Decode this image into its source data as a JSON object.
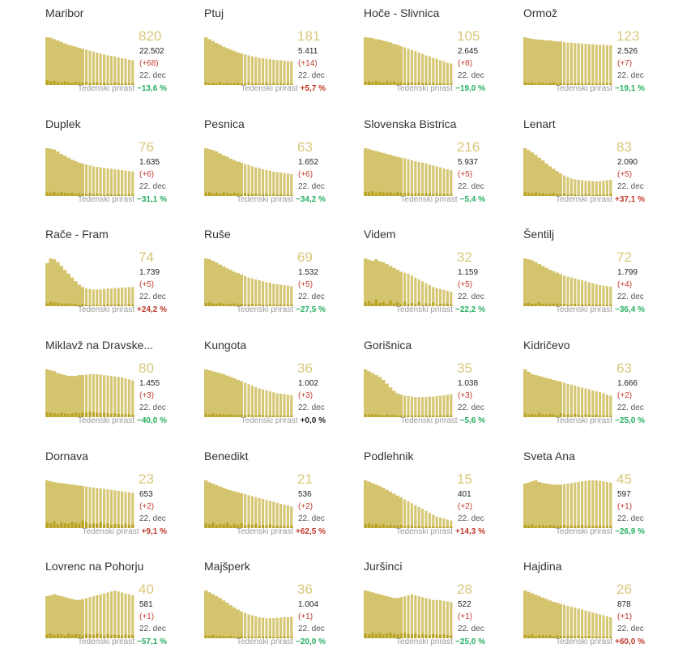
{
  "colors": {
    "active_fill": "#d4c46e",
    "line_fill": "#e9e1b0",
    "new_fill": "#b9a324",
    "active_text": "#d8c77a",
    "positive_change": "#c0392b",
    "negative_change": "#27ae60",
    "neutral_change": "#222222"
  },
  "weekly_label": "Tedenski prirast",
  "date_label": "22. dec",
  "chart_data": [
    {
      "type": "bar",
      "title": "Maribor",
      "active": "820",
      "total": "22.502",
      "new": "(+68)",
      "weekly": "−13,6 %",
      "trend": "down",
      "values": [
        100,
        99,
        96,
        93,
        90,
        87,
        84,
        82,
        80,
        78,
        76,
        74,
        72,
        70,
        68,
        66,
        64,
        62,
        61,
        60,
        58,
        56,
        55,
        53,
        52
      ],
      "daily": [
        10,
        8,
        9,
        7,
        6,
        8,
        6,
        5,
        7,
        6,
        5,
        6,
        4,
        5,
        6,
        4,
        5,
        4,
        3,
        5,
        4,
        3,
        4,
        3,
        4
      ]
    },
    {
      "type": "bar",
      "title": "Ptuj",
      "active": "181",
      "total": "5.411",
      "new": "(+14)",
      "weekly": "+5,7 %",
      "trend": "up",
      "values": [
        100,
        96,
        92,
        88,
        84,
        80,
        77,
        74,
        71,
        68,
        66,
        64,
        62,
        60,
        59,
        57,
        56,
        55,
        54,
        53,
        52,
        52,
        51,
        50,
        50
      ],
      "daily": [
        6,
        4,
        5,
        3,
        6,
        4,
        5,
        3,
        4,
        5,
        3,
        4,
        5,
        3,
        4,
        3,
        4,
        5,
        3,
        4,
        3,
        4,
        3,
        4,
        3
      ]
    },
    {
      "type": "bar",
      "title": "Hoče - Slivnica",
      "active": "105",
      "total": "2.645",
      "new": "(+8)",
      "weekly": "−19,0 %",
      "trend": "down",
      "values": [
        100,
        99,
        98,
        96,
        95,
        93,
        91,
        89,
        86,
        84,
        81,
        79,
        76,
        73,
        71,
        68,
        65,
        62,
        60,
        57,
        55,
        52,
        50,
        47,
        45
      ],
      "daily": [
        7,
        8,
        6,
        9,
        7,
        5,
        8,
        6,
        7,
        5,
        6,
        4,
        6,
        5,
        4,
        6,
        4,
        5,
        3,
        4,
        3,
        4,
        3,
        3,
        3
      ]
    },
    {
      "type": "bar",
      "title": "Ormož",
      "active": "123",
      "total": "2.526",
      "new": "(+7)",
      "weekly": "−19,1 %",
      "trend": "down",
      "values": [
        90,
        88,
        87,
        86,
        85,
        85,
        84,
        84,
        83,
        82,
        82,
        81,
        80,
        80,
        79,
        79,
        78,
        78,
        77,
        77,
        76,
        76,
        76,
        75,
        75
      ],
      "daily": [
        5,
        4,
        5,
        3,
        5,
        4,
        3,
        4,
        5,
        3,
        4,
        3,
        4,
        3,
        3,
        4,
        3,
        3,
        4,
        3,
        3,
        3,
        4,
        3,
        3
      ]
    },
    {
      "type": "bar",
      "title": "Duplek",
      "active": "76",
      "total": "1.635",
      "new": "(+6)",
      "weekly": "−31,1 %",
      "trend": "down",
      "values": [
        100,
        99,
        97,
        93,
        88,
        84,
        80,
        76,
        73,
        70,
        68,
        66,
        64,
        62,
        61,
        60,
        59,
        58,
        57,
        56,
        55,
        54,
        53,
        52,
        51
      ],
      "daily": [
        8,
        7,
        9,
        6,
        8,
        7,
        6,
        7,
        5,
        6,
        5,
        4,
        6,
        4,
        5,
        4,
        3,
        5,
        4,
        3,
        4,
        3,
        3,
        4,
        3
      ]
    },
    {
      "type": "bar",
      "title": "Pesnica",
      "active": "63",
      "total": "1.652",
      "new": "(+6)",
      "weekly": "−34,2 %",
      "trend": "down",
      "values": [
        100,
        98,
        96,
        93,
        89,
        85,
        82,
        78,
        75,
        72,
        70,
        67,
        65,
        62,
        60,
        58,
        56,
        54,
        53,
        51,
        50,
        49,
        48,
        47,
        46
      ],
      "daily": [
        7,
        8,
        6,
        7,
        5,
        8,
        6,
        5,
        7,
        6,
        4,
        6,
        5,
        4,
        5,
        3,
        4,
        5,
        3,
        4,
        3,
        4,
        3,
        3,
        3
      ]
    },
    {
      "type": "bar",
      "title": "Slovenska Bistrica",
      "active": "216",
      "total": "5.937",
      "new": "(+5)",
      "weekly": "−5,4 %",
      "trend": "down",
      "values": [
        100,
        98,
        96,
        94,
        92,
        90,
        88,
        86,
        84,
        82,
        80,
        79,
        77,
        75,
        73,
        71,
        70,
        68,
        66,
        64,
        62,
        60,
        58,
        56,
        54
      ],
      "daily": [
        9,
        8,
        10,
        7,
        9,
        8,
        7,
        8,
        6,
        8,
        7,
        6,
        7,
        6,
        5,
        6,
        5,
        6,
        5,
        4,
        5,
        4,
        5,
        4,
        4
      ]
    },
    {
      "type": "bar",
      "title": "Lenart",
      "active": "83",
      "total": "2.090",
      "new": "(+5)",
      "weekly": "+37,1 %",
      "trend": "up",
      "values": [
        100,
        96,
        91,
        86,
        80,
        74,
        68,
        62,
        57,
        52,
        47,
        43,
        40,
        37,
        35,
        34,
        33,
        32,
        32,
        31,
        31,
        31,
        32,
        33,
        34
      ],
      "daily": [
        8,
        7,
        6,
        8,
        5,
        6,
        4,
        5,
        6,
        4,
        3,
        5,
        3,
        4,
        3,
        2,
        3,
        4,
        3,
        2,
        3,
        3,
        4,
        3,
        4
      ]
    },
    {
      "type": "bar",
      "title": "Rače - Fram",
      "active": "74",
      "total": "1.739",
      "new": "(+5)",
      "weekly": "+24,2 %",
      "trend": "up",
      "values": [
        90,
        100,
        98,
        92,
        84,
        76,
        68,
        60,
        52,
        45,
        40,
        37,
        36,
        35,
        35,
        35,
        36,
        37,
        37,
        38,
        38,
        39,
        39,
        40,
        40
      ],
      "daily": [
        6,
        9,
        8,
        7,
        6,
        5,
        6,
        4,
        5,
        3,
        4,
        3,
        2,
        3,
        3,
        2,
        3,
        4,
        3,
        3,
        4,
        3,
        3,
        4,
        3
      ]
    },
    {
      "type": "bar",
      "title": "Ruše",
      "active": "69",
      "total": "1.532",
      "new": "(+5)",
      "weekly": "−27,5 %",
      "trend": "down",
      "values": [
        100,
        98,
        95,
        91,
        87,
        83,
        79,
        76,
        72,
        69,
        66,
        63,
        60,
        58,
        56,
        54,
        52,
        50,
        49,
        47,
        46,
        45,
        44,
        43,
        42
      ],
      "daily": [
        7,
        8,
        6,
        5,
        7,
        6,
        4,
        5,
        6,
        4,
        5,
        3,
        4,
        5,
        3,
        4,
        3,
        3,
        4,
        3,
        3,
        3,
        3,
        3,
        3
      ]
    },
    {
      "type": "bar",
      "title": "Videm",
      "active": "32",
      "total": "1.159",
      "new": "(+5)",
      "weekly": "−22,2 %",
      "trend": "down",
      "values": [
        100,
        97,
        95,
        98,
        94,
        92,
        88,
        84,
        80,
        76,
        72,
        70,
        68,
        64,
        60,
        56,
        52,
        48,
        44,
        40,
        38,
        36,
        34,
        32,
        30
      ],
      "daily": [
        8,
        10,
        6,
        14,
        7,
        9,
        5,
        12,
        6,
        8,
        4,
        10,
        5,
        7,
        4,
        9,
        3,
        6,
        4,
        8,
        3,
        5,
        4,
        6,
        3
      ]
    },
    {
      "type": "bar",
      "title": "Šentilj",
      "active": "72",
      "total": "1.799",
      "new": "(+4)",
      "weekly": "−36,4 %",
      "trend": "down",
      "values": [
        100,
        98,
        96,
        92,
        88,
        84,
        80,
        76,
        73,
        70,
        67,
        64,
        62,
        60,
        58,
        56,
        54,
        52,
        50,
        48,
        46,
        44,
        43,
        42,
        41
      ],
      "daily": [
        6,
        7,
        5,
        6,
        8,
        5,
        6,
        4,
        5,
        6,
        4,
        5,
        3,
        4,
        5,
        3,
        4,
        3,
        4,
        3,
        3,
        4,
        3,
        3,
        3
      ]
    },
    {
      "type": "bar",
      "title": "Miklavž na Dravske...",
      "active": "80",
      "total": "1.455",
      "new": "(+3)",
      "weekly": "−40,0 %",
      "trend": "down",
      "values": [
        100,
        98,
        96,
        92,
        90,
        88,
        86,
        86,
        86,
        88,
        88,
        89,
        90,
        90,
        90,
        89,
        88,
        87,
        86,
        85,
        84,
        83,
        81,
        79,
        77
      ],
      "daily": [
        10,
        9,
        8,
        7,
        9,
        8,
        7,
        8,
        9,
        8,
        10,
        9,
        12,
        10,
        9,
        8,
        9,
        8,
        7,
        8,
        7,
        6,
        7,
        6,
        5
      ]
    },
    {
      "type": "bar",
      "title": "Kungota",
      "active": "36",
      "total": "1.002",
      "new": "(+3)",
      "weekly": "+0,0 %",
      "trend": "flat",
      "values": [
        100,
        98,
        96,
        94,
        92,
        90,
        87,
        84,
        81,
        78,
        75,
        72,
        69,
        66,
        63,
        60,
        58,
        56,
        54,
        52,
        50,
        49,
        48,
        47,
        46
      ],
      "daily": [
        7,
        6,
        8,
        5,
        7,
        6,
        5,
        6,
        4,
        5,
        6,
        4,
        5,
        4,
        3,
        5,
        4,
        3,
        4,
        3,
        4,
        3,
        3,
        3,
        3
      ]
    },
    {
      "type": "bar",
      "title": "Gorišnica",
      "active": "35",
      "total": "1.038",
      "new": "(+3)",
      "weekly": "−5,6 %",
      "trend": "down",
      "values": [
        100,
        96,
        92,
        88,
        84,
        78,
        70,
        62,
        55,
        50,
        47,
        45,
        44,
        43,
        42,
        42,
        42,
        42,
        43,
        43,
        44,
        45,
        46,
        47,
        48
      ],
      "daily": [
        6,
        5,
        7,
        6,
        5,
        4,
        6,
        4,
        5,
        3,
        4,
        3,
        4,
        3,
        3,
        4,
        3,
        3,
        4,
        3,
        3,
        4,
        3,
        4,
        3
      ]
    },
    {
      "type": "bar",
      "title": "Kidričevo",
      "active": "63",
      "total": "1.666",
      "new": "(+2)",
      "weekly": "−25,0 %",
      "trend": "down",
      "values": [
        100,
        95,
        90,
        88,
        86,
        84,
        82,
        80,
        78,
        76,
        74,
        72,
        70,
        68,
        66,
        64,
        62,
        60,
        58,
        56,
        54,
        52,
        50,
        47,
        45
      ],
      "daily": [
        8,
        6,
        7,
        5,
        9,
        6,
        5,
        7,
        6,
        4,
        8,
        5,
        6,
        4,
        7,
        5,
        4,
        6,
        5,
        4,
        5,
        3,
        4,
        3,
        3
      ]
    },
    {
      "type": "bar",
      "title": "Dornava",
      "active": "23",
      "total": "653",
      "new": "(+2)",
      "weekly": "+9,1 %",
      "trend": "up",
      "values": [
        100,
        98,
        96,
        95,
        94,
        93,
        92,
        91,
        90,
        89,
        88,
        87,
        86,
        85,
        84,
        83,
        82,
        81,
        80,
        79,
        78,
        77,
        76,
        75,
        74
      ],
      "daily": [
        12,
        10,
        14,
        8,
        12,
        10,
        9,
        13,
        11,
        9,
        15,
        12,
        8,
        10,
        9,
        12,
        8,
        10,
        7,
        9,
        8,
        7,
        9,
        7,
        8
      ]
    },
    {
      "type": "bar",
      "title": "Benedikt",
      "active": "21",
      "total": "536",
      "new": "(+2)",
      "weekly": "+62,5 %",
      "trend": "up",
      "values": [
        100,
        96,
        93,
        90,
        87,
        84,
        81,
        79,
        77,
        75,
        73,
        71,
        69,
        67,
        65,
        63,
        61,
        59,
        57,
        55,
        53,
        51,
        49,
        47,
        45
      ],
      "daily": [
        10,
        8,
        12,
        7,
        9,
        8,
        11,
        6,
        9,
        7,
        10,
        6,
        8,
        7,
        9,
        5,
        7,
        6,
        8,
        5,
        6,
        4,
        5,
        4,
        5
      ]
    },
    {
      "type": "bar",
      "title": "Podlehnik",
      "active": "15",
      "total": "401",
      "new": "(+2)",
      "weekly": "+14,3 %",
      "trend": "up",
      "values": [
        100,
        97,
        94,
        91,
        88,
        84,
        80,
        76,
        72,
        68,
        64,
        60,
        56,
        52,
        48,
        44,
        40,
        36,
        32,
        28,
        24,
        22,
        20,
        18,
        16
      ],
      "daily": [
        8,
        10,
        7,
        9,
        6,
        8,
        5,
        7,
        6,
        5,
        7,
        4,
        6,
        5,
        4,
        5,
        3,
        4,
        3,
        4,
        3,
        3,
        3,
        3,
        3
      ]
    },
    {
      "type": "bar",
      "title": "Sveta Ana",
      "active": "45",
      "total": "597",
      "new": "(+1)",
      "weekly": "−26,9 %",
      "trend": "down",
      "values": [
        82,
        84,
        86,
        88,
        85,
        83,
        82,
        81,
        80,
        80,
        80,
        81,
        82,
        83,
        84,
        85,
        86,
        87,
        88,
        88,
        88,
        87,
        86,
        85,
        84
      ],
      "daily": [
        6,
        5,
        7,
        4,
        6,
        5,
        4,
        6,
        5,
        4,
        5,
        6,
        4,
        5,
        4,
        5,
        6,
        4,
        5,
        4,
        4,
        5,
        4,
        4,
        4
      ]
    },
    {
      "type": "bar",
      "title": "Lovrenc na Pohorju",
      "active": "40",
      "total": "581",
      "new": "(+1)",
      "weekly": "−57,1 %",
      "trend": "down",
      "values": [
        88,
        90,
        92,
        90,
        88,
        86,
        84,
        82,
        80,
        80,
        82,
        84,
        86,
        88,
        90,
        92,
        94,
        96,
        98,
        100,
        98,
        96,
        94,
        92,
        90
      ],
      "daily": [
        8,
        10,
        7,
        9,
        8,
        6,
        10,
        7,
        9,
        8,
        6,
        9,
        8,
        7,
        10,
        8,
        6,
        9,
        7,
        8,
        7,
        6,
        8,
        6,
        7
      ]
    },
    {
      "type": "bar",
      "title": "Majšperk",
      "active": "36",
      "total": "1.004",
      "new": "(+1)",
      "weekly": "−20,0 %",
      "trend": "down",
      "values": [
        100,
        96,
        92,
        88,
        84,
        79,
        74,
        69,
        64,
        60,
        56,
        53,
        50,
        48,
        46,
        44,
        43,
        42,
        42,
        42,
        43,
        43,
        44,
        44,
        45
      ],
      "daily": [
        6,
        5,
        7,
        4,
        6,
        5,
        4,
        5,
        3,
        4,
        5,
        3,
        4,
        3,
        3,
        4,
        3,
        3,
        4,
        3,
        3,
        3,
        4,
        3,
        3
      ]
    },
    {
      "type": "bar",
      "title": "Juršinci",
      "active": "28",
      "total": "522",
      "new": "(+1)",
      "weekly": "−25,0 %",
      "trend": "down",
      "values": [
        100,
        98,
        96,
        94,
        92,
        90,
        88,
        86,
        84,
        84,
        86,
        88,
        90,
        92,
        90,
        88,
        86,
        84,
        82,
        80,
        80,
        80,
        78,
        77,
        76
      ],
      "daily": [
        10,
        8,
        12,
        9,
        11,
        8,
        10,
        12,
        9,
        8,
        10,
        11,
        9,
        8,
        10,
        7,
        9,
        8,
        7,
        9,
        8,
        7,
        8,
        7,
        6
      ]
    },
    {
      "type": "bar",
      "title": "Hajdina",
      "active": "26",
      "total": "878",
      "new": "(+1)",
      "weekly": "+60,0 %",
      "trend": "up",
      "values": [
        100,
        97,
        94,
        91,
        88,
        85,
        82,
        79,
        76,
        74,
        72,
        70,
        68,
        66,
        64,
        62,
        60,
        58,
        56,
        54,
        52,
        50,
        48,
        46,
        44
      ],
      "daily": [
        7,
        6,
        8,
        5,
        7,
        6,
        5,
        7,
        4,
        6,
        5,
        4,
        6,
        5,
        4,
        5,
        3,
        4,
        5,
        3,
        4,
        3,
        4,
        3,
        3
      ]
    }
  ]
}
